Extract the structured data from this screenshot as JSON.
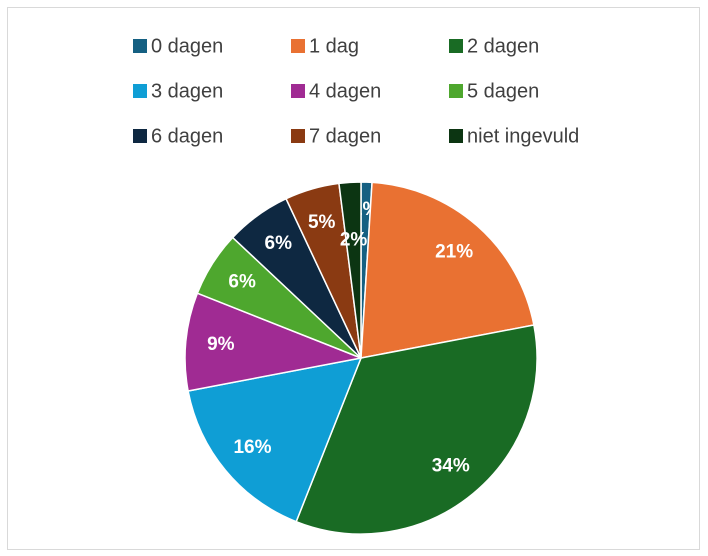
{
  "chart_data": {
    "type": "pie",
    "categories": [
      "0 dagen",
      "1 dag",
      "2 dagen",
      "3 dagen",
      "4 dagen",
      "5 dagen",
      "6 dagen",
      "7 dagen",
      "niet ingevuld"
    ],
    "values": [
      1,
      21,
      34,
      16,
      9,
      6,
      6,
      5,
      2
    ],
    "value_labels": [
      "1%",
      "21%",
      "34%",
      "16%",
      "9%",
      "6%",
      "6%",
      "5%",
      "2%"
    ],
    "colors": [
      "#156082",
      "#e97132",
      "#196b24",
      "#0f9ed5",
      "#a02b93",
      "#4ea72e",
      "#0e2841",
      "#8a3a12",
      "#0c3512"
    ],
    "legend": "top"
  }
}
